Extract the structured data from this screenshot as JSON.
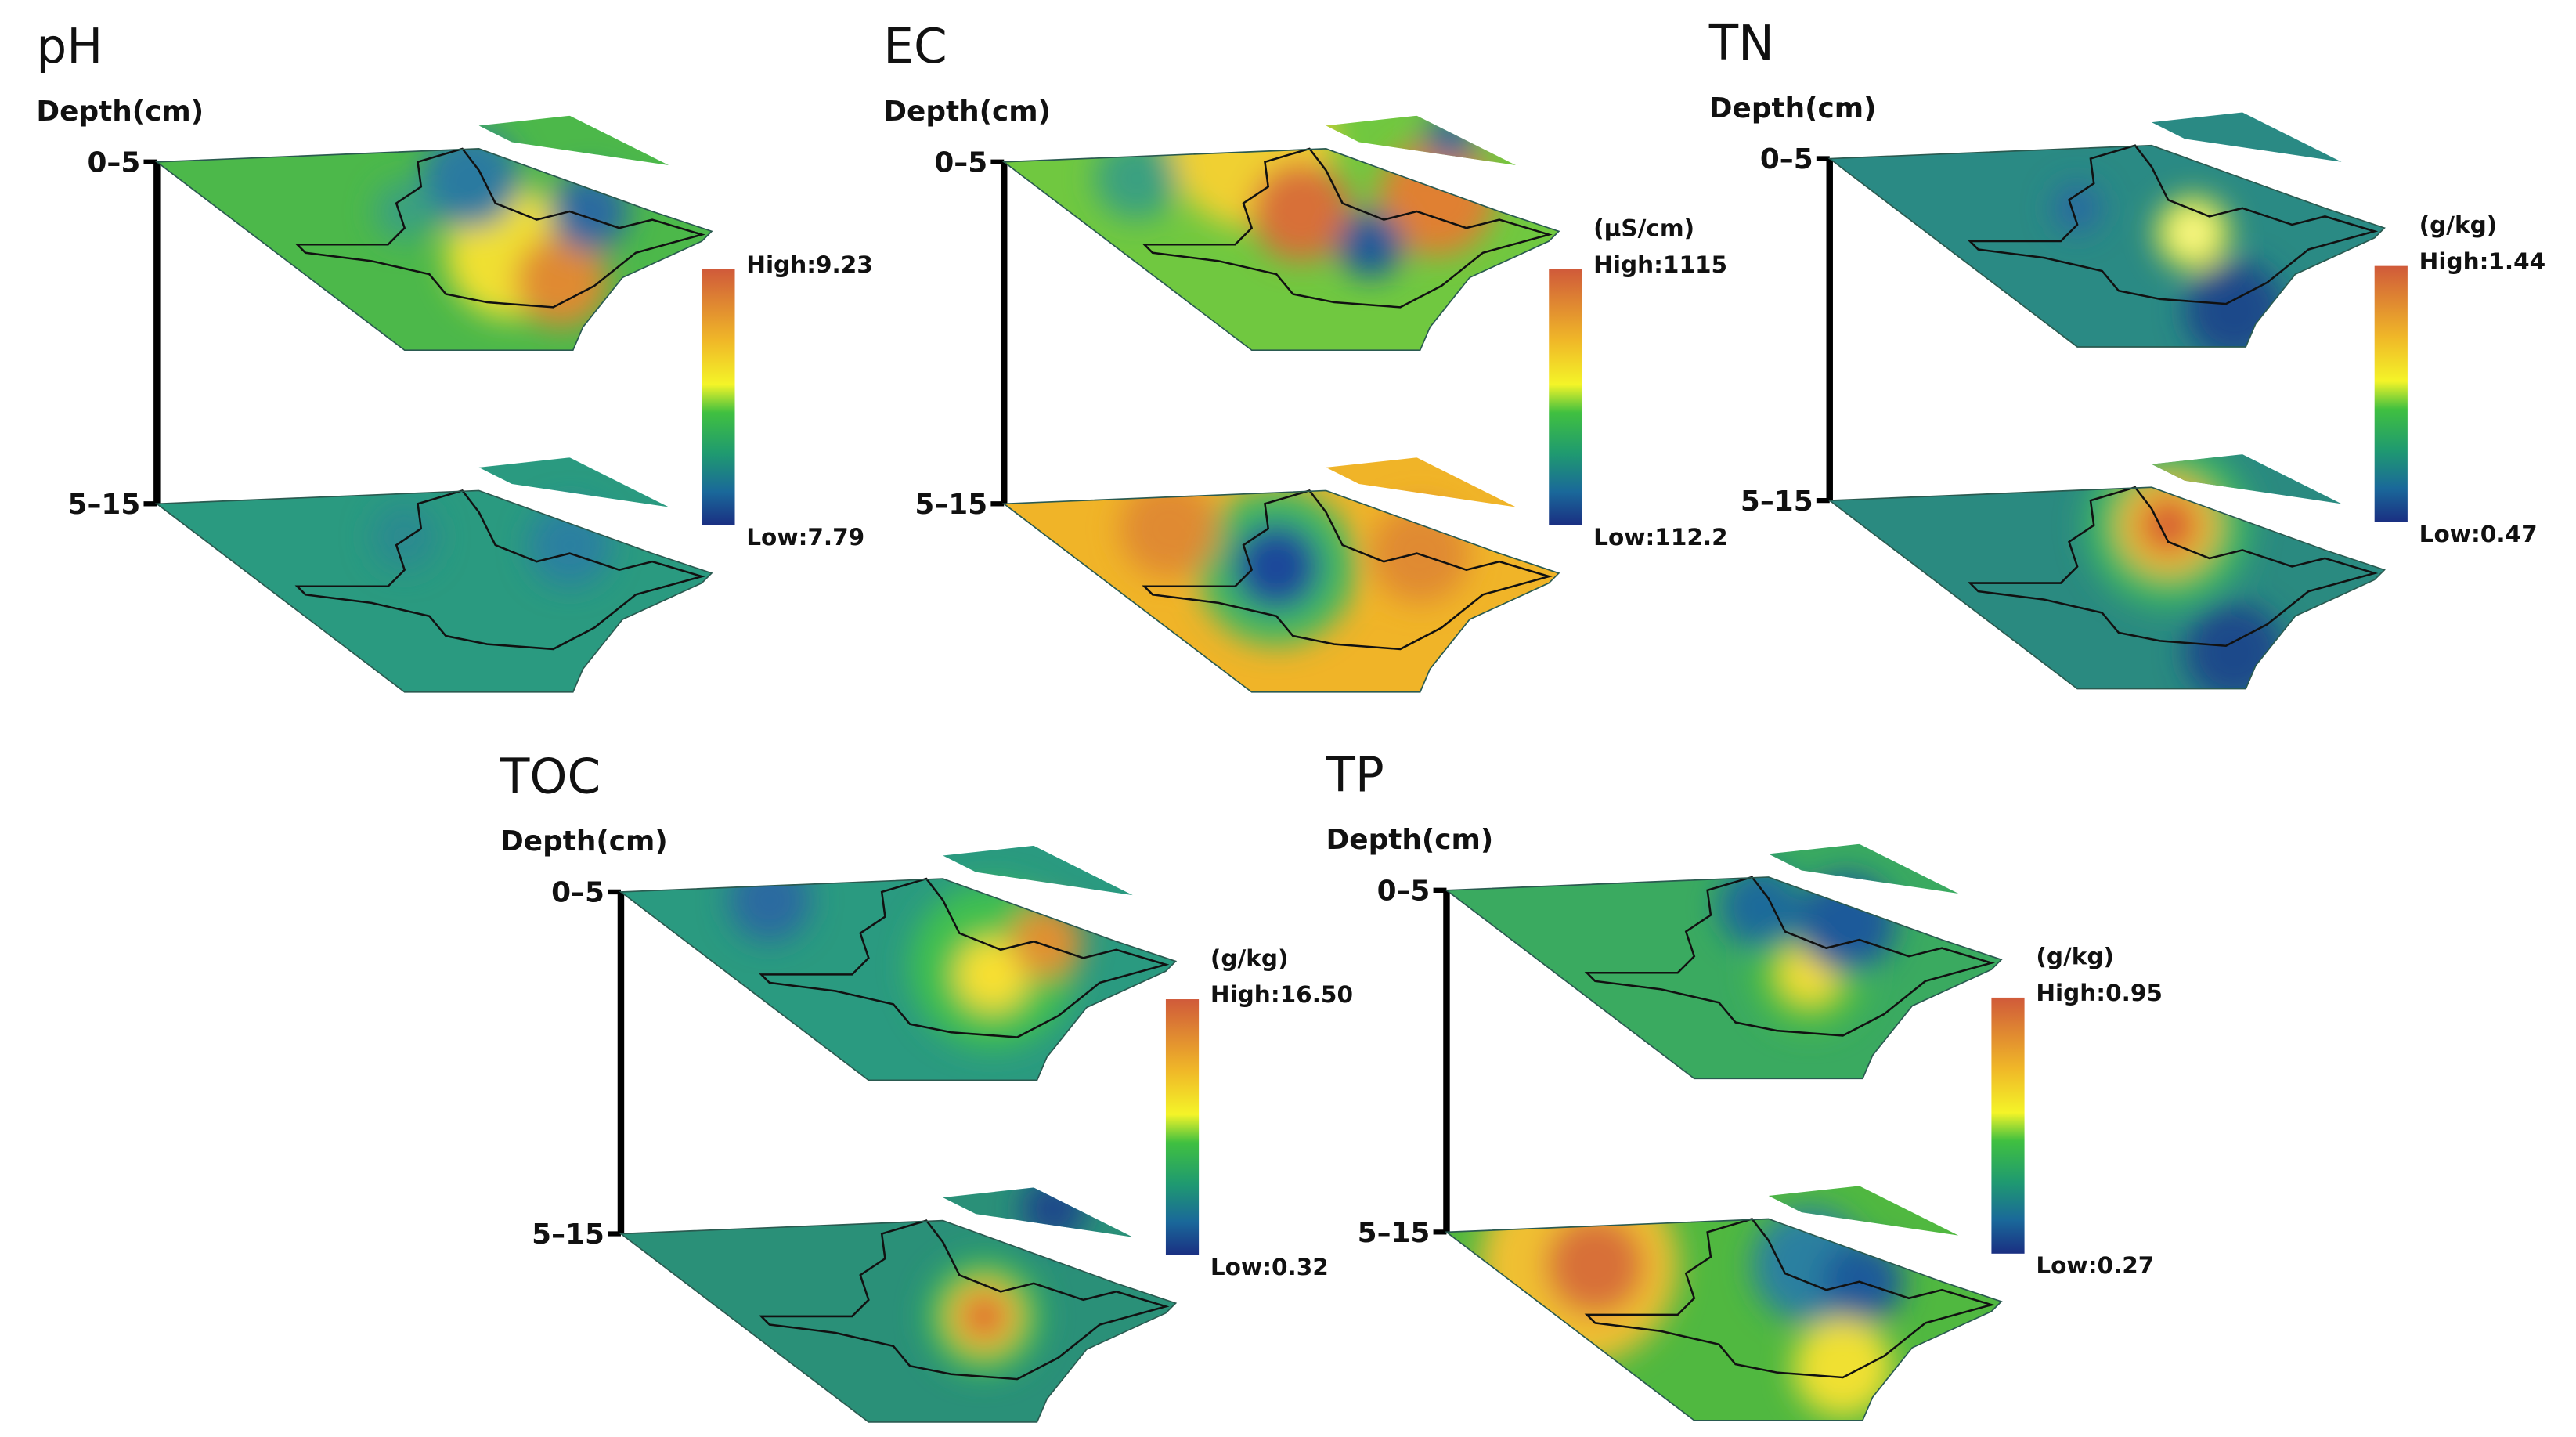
{
  "panels": [
    {
      "title": "pH",
      "depth_label": "Depth(cm)",
      "depths": [
        "0–5",
        "5–15"
      ],
      "high": "High:9.23",
      "low": "Low:7.79"
    },
    {
      "title": "EC",
      "depth_label": "Depth(cm)",
      "depths": [
        "0–5",
        "5–15"
      ],
      "unit": "(μS/cm)",
      "high": "High:1115",
      "low": "Low:112.2"
    },
    {
      "title": "TN",
      "depth_label": "Depth(cm)",
      "depths": [
        "0–5",
        "5–15"
      ],
      "unit": "(g/kg)",
      "high": "High:1.44",
      "low": "Low:0.47"
    },
    {
      "title": "TOC",
      "depth_label": "Depth(cm)",
      "depths": [
        "0–5",
        "5–15"
      ],
      "unit": "(g/kg)",
      "high": "High:16.50",
      "low": "Low:0.32"
    },
    {
      "title": "TP",
      "depth_label": "Depth(cm)",
      "depths": [
        "0–5",
        "5–15"
      ],
      "unit": "(g/kg)",
      "high": "High:0.95",
      "low": "Low:0.27"
    }
  ]
}
